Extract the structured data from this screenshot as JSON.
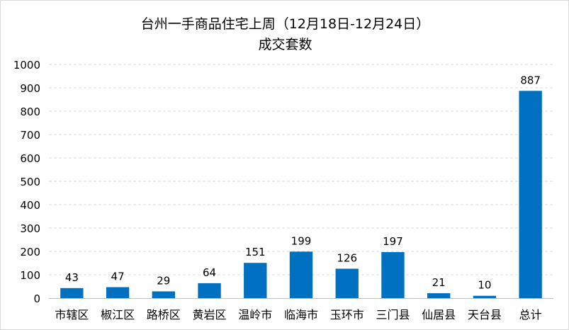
{
  "chart_data": {
    "type": "bar",
    "title": "台州一手商品住宅上周（12月18日-12月24日）",
    "subtitle": "成交套数",
    "categories": [
      "市辖区",
      "椒江区",
      "路桥区",
      "黄岩区",
      "温岭市",
      "临海市",
      "玉环市",
      "三门县",
      "仙居县",
      "天台县",
      "总计"
    ],
    "values": [
      43,
      47,
      29,
      64,
      151,
      199,
      126,
      197,
      21,
      10,
      887
    ],
    "yticks": [
      "0",
      "100",
      "200",
      "300",
      "400",
      "500",
      "600",
      "700",
      "800",
      "900",
      "1000"
    ],
    "ylim": [
      0,
      1000
    ],
    "grid": true,
    "legend": "none",
    "bar_color": "#0070C0",
    "grid_color": "#d9d9d9"
  }
}
